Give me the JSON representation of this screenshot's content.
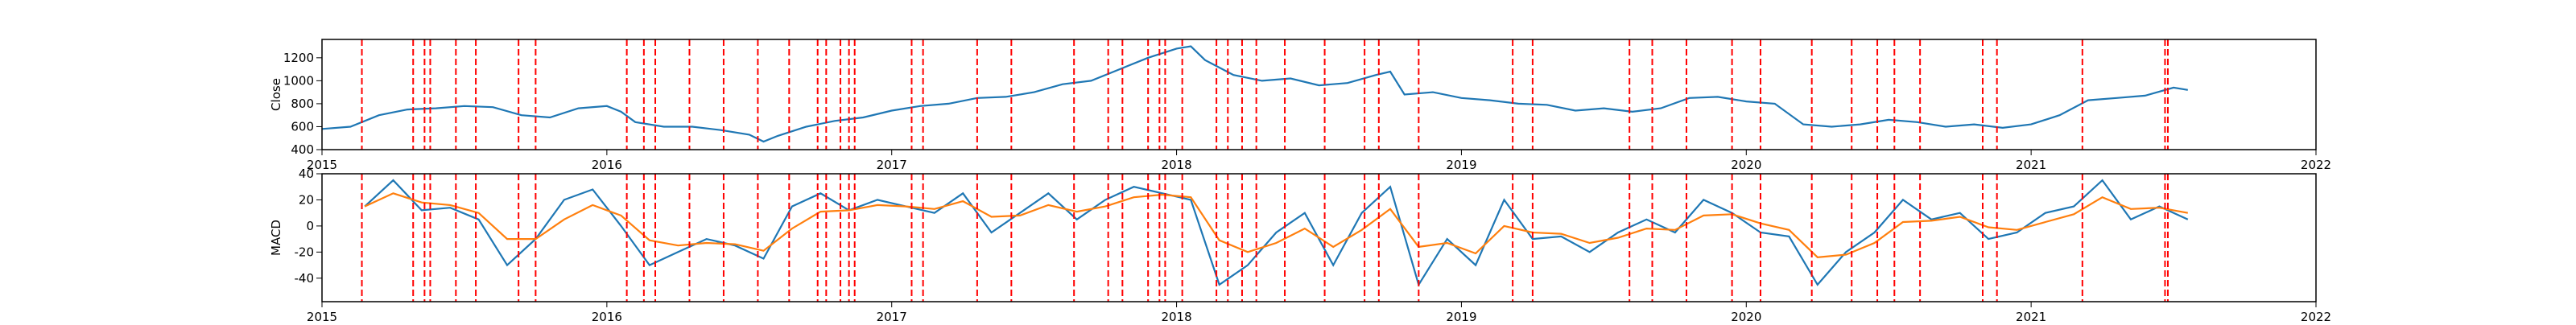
{
  "chart_data": [
    {
      "type": "line",
      "ylabel": "Close",
      "x": [
        2015.0,
        2015.1,
        2015.2,
        2015.3,
        2015.4,
        2015.5,
        2015.6,
        2015.7,
        2015.8,
        2015.9,
        2016.0,
        2016.05,
        2016.1,
        2016.2,
        2016.3,
        2016.4,
        2016.5,
        2016.55,
        2016.6,
        2016.7,
        2016.8,
        2016.9,
        2017.0,
        2017.1,
        2017.2,
        2017.3,
        2017.4,
        2017.5,
        2017.6,
        2017.7,
        2017.8,
        2017.9,
        2018.0,
        2018.05,
        2018.1,
        2018.2,
        2018.3,
        2018.4,
        2018.5,
        2018.6,
        2018.7,
        2018.75,
        2018.8,
        2018.9,
        2019.0,
        2019.1,
        2019.2,
        2019.3,
        2019.4,
        2019.5,
        2019.6,
        2019.7,
        2019.8,
        2019.9,
        2020.0,
        2020.1,
        2020.2,
        2020.3,
        2020.4,
        2020.5,
        2020.6,
        2020.7,
        2020.8,
        2020.9,
        2021.0,
        2021.1,
        2021.2,
        2021.3,
        2021.4,
        2021.5,
        2021.55
      ],
      "series": [
        {
          "color": "#1f77b4",
          "values": [
            580,
            600,
            700,
            750,
            760,
            780,
            770,
            700,
            680,
            760,
            780,
            730,
            640,
            600,
            600,
            570,
            530,
            470,
            520,
            600,
            650,
            680,
            740,
            780,
            800,
            850,
            860,
            900,
            970,
            1000,
            1100,
            1200,
            1280,
            1300,
            1180,
            1050,
            1000,
            1020,
            960,
            980,
            1050,
            1080,
            880,
            900,
            850,
            830,
            800,
            790,
            740,
            760,
            730,
            760,
            850,
            860,
            820,
            800,
            620,
            600,
            620,
            660,
            640,
            600,
            620,
            590,
            620,
            700,
            830,
            850,
            870,
            940,
            920
          ]
        }
      ],
      "xlim": [
        2015,
        2022
      ],
      "xticks": [
        2015,
        2016,
        2017,
        2018,
        2019,
        2020,
        2021,
        2022
      ],
      "ylim": [
        400,
        1360
      ],
      "yticks": [
        400,
        600,
        800,
        1000,
        1200
      ],
      "vlines": [
        2015.14,
        2015.32,
        2015.36,
        2015.38,
        2015.47,
        2015.54,
        2015.69,
        2015.75,
        2016.07,
        2016.13,
        2016.17,
        2016.29,
        2016.41,
        2016.53,
        2016.64,
        2016.74,
        2016.77,
        2016.82,
        2016.85,
        2016.87,
        2017.07,
        2017.11,
        2017.3,
        2017.42,
        2017.64,
        2017.76,
        2017.81,
        2017.9,
        2017.94,
        2017.96,
        2018.02,
        2018.14,
        2018.18,
        2018.23,
        2018.28,
        2018.38,
        2018.52,
        2018.66,
        2018.71,
        2018.85,
        2019.18,
        2019.25,
        2019.59,
        2019.67,
        2019.79,
        2019.95,
        2020.05,
        2020.23,
        2020.37,
        2020.46,
        2020.52,
        2020.61,
        2020.83,
        2020.88,
        2021.18,
        2021.47,
        2021.48
      ],
      "vline_color": "#ff0000"
    },
    {
      "type": "line",
      "ylabel": "MACD",
      "x": [
        2015.15,
        2015.25,
        2015.35,
        2015.45,
        2015.55,
        2015.65,
        2015.75,
        2015.85,
        2015.95,
        2016.05,
        2016.15,
        2016.25,
        2016.35,
        2016.45,
        2016.55,
        2016.65,
        2016.75,
        2016.85,
        2016.95,
        2017.05,
        2017.15,
        2017.25,
        2017.35,
        2017.45,
        2017.55,
        2017.65,
        2017.75,
        2017.85,
        2017.95,
        2018.05,
        2018.15,
        2018.25,
        2018.35,
        2018.45,
        2018.55,
        2018.65,
        2018.75,
        2018.85,
        2018.95,
        2019.05,
        2019.15,
        2019.25,
        2019.35,
        2019.45,
        2019.55,
        2019.65,
        2019.75,
        2019.85,
        2019.95,
        2020.05,
        2020.15,
        2020.25,
        2020.35,
        2020.45,
        2020.55,
        2020.65,
        2020.75,
        2020.85,
        2020.95,
        2021.05,
        2021.15,
        2021.25,
        2021.35,
        2021.45,
        2021.55
      ],
      "series": [
        {
          "color": "#1f77b4",
          "values": [
            15,
            35,
            12,
            14,
            5,
            -30,
            -10,
            20,
            28,
            0,
            -30,
            -20,
            -10,
            -15,
            -25,
            15,
            25,
            12,
            20,
            15,
            10,
            25,
            -5,
            10,
            25,
            5,
            20,
            30,
            25,
            20,
            -45,
            -30,
            -5,
            10,
            -30,
            10,
            30,
            -45,
            -10,
            -30,
            20,
            -10,
            -8,
            -20,
            -5,
            5,
            -5,
            20,
            10,
            -5,
            -8,
            -45,
            -20,
            -5,
            20,
            5,
            10,
            -10,
            -5,
            10,
            15,
            35,
            5,
            15,
            5
          ]
        },
        {
          "color": "#ff7f0e",
          "values": [
            15,
            25,
            18,
            16,
            10,
            -10,
            -10,
            5,
            16,
            8,
            -11,
            -15,
            -13,
            -14,
            -19,
            -2,
            11,
            12,
            16,
            15,
            13,
            19,
            7,
            8,
            16,
            11,
            15,
            22,
            24,
            22,
            -11,
            -20,
            -13,
            -2,
            -16,
            -3,
            13,
            -16,
            -13,
            -21,
            0,
            -5,
            -6,
            -13,
            -9,
            -2,
            -3,
            8,
            9,
            2,
            -3,
            -24,
            -22,
            -13,
            3,
            4,
            7,
            -1,
            -3,
            3,
            9,
            22,
            13,
            14,
            10
          ]
        }
      ],
      "xlim": [
        2015,
        2022
      ],
      "xticks": [
        2015,
        2016,
        2017,
        2018,
        2019,
        2020,
        2021,
        2022
      ],
      "ylim": [
        -58,
        40
      ],
      "yticks": [
        -40,
        -20,
        0,
        20,
        40
      ],
      "vlines": [
        2015.14,
        2015.32,
        2015.36,
        2015.38,
        2015.47,
        2015.54,
        2015.69,
        2015.75,
        2016.07,
        2016.13,
        2016.17,
        2016.29,
        2016.41,
        2016.53,
        2016.64,
        2016.74,
        2016.77,
        2016.82,
        2016.85,
        2016.87,
        2017.07,
        2017.11,
        2017.3,
        2017.42,
        2017.64,
        2017.76,
        2017.81,
        2017.9,
        2017.94,
        2017.96,
        2018.02,
        2018.14,
        2018.18,
        2018.23,
        2018.28,
        2018.38,
        2018.52,
        2018.66,
        2018.71,
        2018.85,
        2019.18,
        2019.25,
        2019.59,
        2019.67,
        2019.79,
        2019.95,
        2020.05,
        2020.23,
        2020.37,
        2020.46,
        2020.52,
        2020.61,
        2020.83,
        2020.88,
        2021.18,
        2021.47,
        2021.48
      ],
      "vline_color": "#ff0000"
    }
  ]
}
